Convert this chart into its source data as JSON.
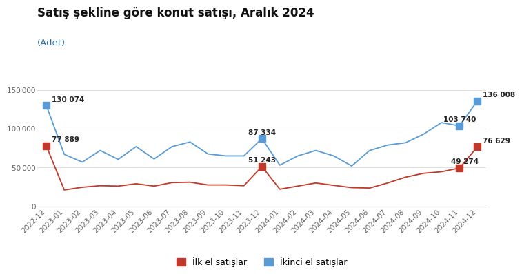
{
  "title": "Satış şekline göre konut satışı, Aralık 2024",
  "subtitle": "(Adet)",
  "labels": [
    "2022-12",
    "2023-01",
    "2023-02",
    "2023-03",
    "2023-04",
    "2023-05",
    "2023-06",
    "2023-07",
    "2023-08",
    "2023-09",
    "2023-10",
    "2023-11",
    "2023-12",
    "2024-01",
    "2024-02",
    "2024-03",
    "2024-04",
    "2024-05",
    "2024-06",
    "2024-07",
    "2024-08",
    "2024-09",
    "2024-10",
    "2024-11",
    "2024-12"
  ],
  "ilk_el": [
    77889,
    21000,
    24500,
    26500,
    26000,
    29000,
    26000,
    30500,
    31000,
    27500,
    27500,
    26500,
    51243,
    22000,
    26000,
    30000,
    27000,
    24000,
    23500,
    30000,
    37500,
    42500,
    44500,
    49274,
    76629
  ],
  "ikinci_el": [
    130074,
    67000,
    57000,
    72000,
    60500,
    77000,
    61000,
    77000,
    83000,
    67500,
    65000,
    65000,
    87334,
    53000,
    65000,
    72000,
    65000,
    52000,
    72000,
    79000,
    82000,
    93000,
    108000,
    103740,
    136008
  ],
  "highlighted_ilk": [
    0,
    12,
    23,
    24
  ],
  "highlighted_ikinci": [
    0,
    12,
    23,
    24
  ],
  "annotations_ilk": {
    "0": {
      "text": "77 889",
      "ha": "left",
      "xoff": 0.3,
      "yoff": 3500
    },
    "12": {
      "text": "51 243",
      "ha": "center",
      "xoff": 0.0,
      "yoff": 3500
    },
    "23": {
      "text": "49 274",
      "ha": "center",
      "xoff": 0.3,
      "yoff": 3500
    },
    "24": {
      "text": "76 629",
      "ha": "left",
      "xoff": 0.3,
      "yoff": 3500
    }
  },
  "annotations_ikinci": {
    "0": {
      "text": "130 074",
      "ha": "left",
      "xoff": 0.3,
      "yoff": 3500
    },
    "12": {
      "text": "87 334",
      "ha": "center",
      "xoff": 0.0,
      "yoff": 3500
    },
    "23": {
      "text": "103 740",
      "ha": "center",
      "xoff": 0.0,
      "yoff": 3500
    },
    "24": {
      "text": "136 008",
      "ha": "left",
      "xoff": 0.3,
      "yoff": 3500
    }
  },
  "ilk_color": "#C0392B",
  "ikinci_color": "#5B9BD5",
  "marker_size": 7,
  "ylim": [
    0,
    162000
  ],
  "yticks": [
    0,
    50000,
    100000,
    150000
  ],
  "background_color": "#FFFFFF",
  "legend_ilk": "İlk el satışlar",
  "legend_ikinci": "İkinci el satışlar",
  "title_fontsize": 12,
  "subtitle_fontsize": 9.5,
  "tick_fontsize": 7.5,
  "annotation_fontsize": 7.5,
  "annotation_fontweight": "bold"
}
